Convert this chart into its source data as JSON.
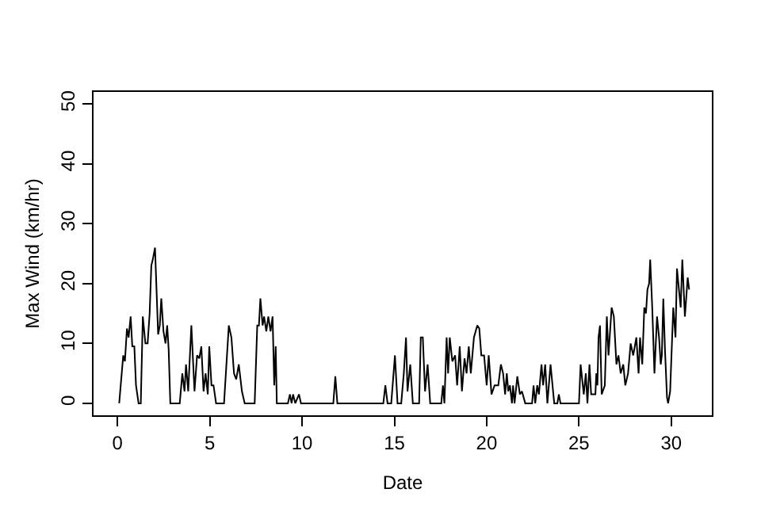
{
  "chart_data": {
    "type": "line",
    "xlabel": "Date",
    "ylabel": "Max Wind (km/hr)",
    "xlim": [
      -1.3,
      32.2
    ],
    "ylim": [
      -2,
      52
    ],
    "xticks": [
      0,
      5,
      10,
      15,
      20,
      25,
      30
    ],
    "yticks": [
      0,
      10,
      20,
      30,
      40,
      50
    ],
    "grid": false,
    "marker": "none",
    "line_style": "solid",
    "series": [
      {
        "color": "#000000",
        "x": [
          0.09,
          0.31,
          0.4,
          0.51,
          0.6,
          0.71,
          0.8,
          0.91,
          1.0,
          1.14,
          1.26,
          1.37,
          1.51,
          1.63,
          1.74,
          1.83,
          1.91,
          2.03,
          2.2,
          2.29,
          2.37,
          2.49,
          2.6,
          2.69,
          2.77,
          2.86,
          3.37,
          3.51,
          3.63,
          3.71,
          3.83,
          4.0,
          4.17,
          4.31,
          4.43,
          4.54,
          4.66,
          4.77,
          4.89,
          4.97,
          5.09,
          5.2,
          5.34,
          5.77,
          6.03,
          6.17,
          6.31,
          6.43,
          6.57,
          6.74,
          6.89,
          7.43,
          7.57,
          7.66,
          7.74,
          7.86,
          7.94,
          8.06,
          8.17,
          8.29,
          8.4,
          8.49,
          8.57,
          8.63,
          9.23,
          9.34,
          9.43,
          9.51,
          9.63,
          9.83,
          9.94,
          11.69,
          11.8,
          11.91,
          14.4,
          14.51,
          14.63,
          14.83,
          15.03,
          15.17,
          15.37,
          15.51,
          15.63,
          15.71,
          15.86,
          16.0,
          16.34,
          16.43,
          16.54,
          16.66,
          16.8,
          16.94,
          17.54,
          17.63,
          17.71,
          17.83,
          17.91,
          18.0,
          18.14,
          18.29,
          18.4,
          18.54,
          18.66,
          18.8,
          18.91,
          19.03,
          19.14,
          19.31,
          19.49,
          19.6,
          19.71,
          19.86,
          20.0,
          20.11,
          20.26,
          20.43,
          20.63,
          20.77,
          20.89,
          21.0,
          21.09,
          21.17,
          21.26,
          21.37,
          21.43,
          21.51,
          21.66,
          21.8,
          21.91,
          22.09,
          22.46,
          22.54,
          22.63,
          22.74,
          22.83,
          22.97,
          23.06,
          23.17,
          23.29,
          23.46,
          23.66,
          23.83,
          23.91,
          24.0,
          25.0,
          25.09,
          25.26,
          25.37,
          25.46,
          25.57,
          25.66,
          25.89,
          25.94,
          26.0,
          26.06,
          26.14,
          26.23,
          26.4,
          26.51,
          26.6,
          26.77,
          26.89,
          27.03,
          27.14,
          27.26,
          27.4,
          27.51,
          27.66,
          27.8,
          27.94,
          28.11,
          28.23,
          28.31,
          28.43,
          28.54,
          28.63,
          28.71,
          28.8,
          28.86,
          28.97,
          29.09,
          29.23,
          29.34,
          29.43,
          29.49,
          29.57,
          29.66,
          29.77,
          29.83,
          29.94,
          30.11,
          30.23,
          30.31,
          30.51,
          30.6,
          30.74,
          30.89,
          30.97
        ],
        "values": [
          0,
          8,
          7,
          12.5,
          11,
          14.5,
          9.5,
          9.5,
          3,
          0,
          0,
          14.5,
          10,
          10,
          15,
          23,
          24,
          26,
          11.5,
          13,
          17.5,
          12,
          10,
          13,
          9,
          0,
          0,
          5,
          2,
          6.5,
          2,
          13,
          2,
          8,
          7.5,
          9.5,
          2,
          5,
          1.5,
          9.5,
          3,
          3,
          0,
          0,
          13,
          11,
          5,
          4,
          6.5,
          2,
          0,
          0,
          13,
          13,
          17.5,
          13,
          14.5,
          12,
          14.5,
          12,
          14.5,
          3,
          9.5,
          0,
          0,
          1.5,
          0,
          1.5,
          0,
          1.5,
          0,
          0,
          4.5,
          0,
          0,
          3,
          0,
          0,
          8,
          0,
          0,
          5,
          11,
          2,
          6.5,
          0,
          0,
          11,
          11,
          2,
          6.5,
          0,
          0,
          3,
          0,
          11,
          5,
          11,
          7,
          8,
          3,
          9.5,
          2,
          7.5,
          5,
          9.5,
          5,
          11,
          13,
          12.5,
          8,
          8,
          3,
          8,
          1.5,
          3,
          3,
          6.5,
          5,
          1.5,
          5,
          2,
          3,
          0,
          3,
          0,
          4.5,
          1.5,
          2,
          0,
          0,
          3,
          0,
          3,
          1.5,
          6.5,
          3,
          6.5,
          0,
          6.5,
          0,
          0,
          1.5,
          0,
          0,
          6.5,
          1.5,
          5,
          0,
          6.5,
          1.5,
          1.5,
          5,
          3,
          11,
          13,
          1.5,
          3,
          14.5,
          8,
          16,
          14.5,
          6.5,
          8,
          5,
          6.5,
          3,
          5,
          10,
          8,
          11,
          5,
          11,
          6.5,
          16,
          15,
          19,
          20,
          24,
          16,
          5,
          14.5,
          11,
          6.5,
          8,
          17.5,
          9,
          1,
          0,
          2,
          16,
          11,
          22.5,
          16,
          24,
          14.5,
          21,
          19
        ]
      }
    ]
  }
}
